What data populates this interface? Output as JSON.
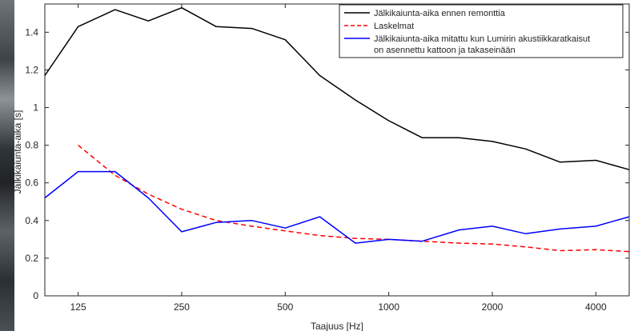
{
  "chart_data": {
    "type": "line",
    "title": "",
    "xlabel": "Taajuus [Hz]",
    "ylabel": "Jälkikaiunta-aika [s]",
    "x_scale": "log",
    "x": [
      100,
      125,
      160,
      200,
      250,
      315,
      400,
      500,
      630,
      800,
      1000,
      1250,
      1600,
      2000,
      2500,
      3150,
      4000,
      5000
    ],
    "xlim": [
      100,
      5000
    ],
    "ylim": [
      0,
      1.55
    ],
    "x_ticks": [
      125,
      250,
      500,
      1000,
      2000,
      4000
    ],
    "x_tick_labels": [
      "125",
      "250",
      "500",
      "1000",
      "2000",
      "4000"
    ],
    "y_ticks": [
      0,
      0.2,
      0.4,
      0.6,
      0.8,
      1.0,
      1.2,
      1.4
    ],
    "y_tick_labels": [
      "0",
      "0.2",
      "0.4",
      "0.6",
      "0.8",
      "1",
      "1.2",
      "1.4"
    ],
    "grid": false,
    "legend_position": "top-right",
    "series": [
      {
        "name": "Jälkikaiunta-aika ennen remonttia",
        "color": "#000000",
        "style": "solid",
        "values": [
          1.17,
          1.43,
          1.52,
          1.46,
          1.53,
          1.43,
          1.42,
          1.36,
          1.17,
          1.04,
          0.93,
          0.84,
          0.84,
          0.82,
          0.78,
          0.71,
          0.72,
          0.67
        ]
      },
      {
        "name": "Laskelmat",
        "color": "#ff0000",
        "style": "dashed",
        "x": [
          125,
          160,
          200,
          250,
          315,
          400,
          500,
          630,
          800,
          1000,
          1250,
          1600,
          2000,
          2500,
          3150,
          4000,
          5000
        ],
        "values": [
          0.8,
          0.64,
          0.54,
          0.46,
          0.4,
          0.37,
          0.345,
          0.32,
          0.305,
          0.3,
          0.29,
          0.28,
          0.275,
          0.26,
          0.24,
          0.245,
          0.235
        ]
      },
      {
        "name": "Jälkikaiunta-aika mitattu kun Lumirin akustiikkaratkaisut on asennettu kattoon ja takaseinään",
        "name_lines": [
          "Jälkikaiunta-aika mitattu kun Lumirin akustiikkaratkaisut",
          "on asennettu kattoon ja takaseinään"
        ],
        "color": "#0000ff",
        "style": "solid",
        "values": [
          0.52,
          0.66,
          0.66,
          0.52,
          0.34,
          0.39,
          0.4,
          0.36,
          0.42,
          0.28,
          0.3,
          0.29,
          0.35,
          0.37,
          0.33,
          0.355,
          0.37,
          0.42
        ]
      }
    ]
  }
}
